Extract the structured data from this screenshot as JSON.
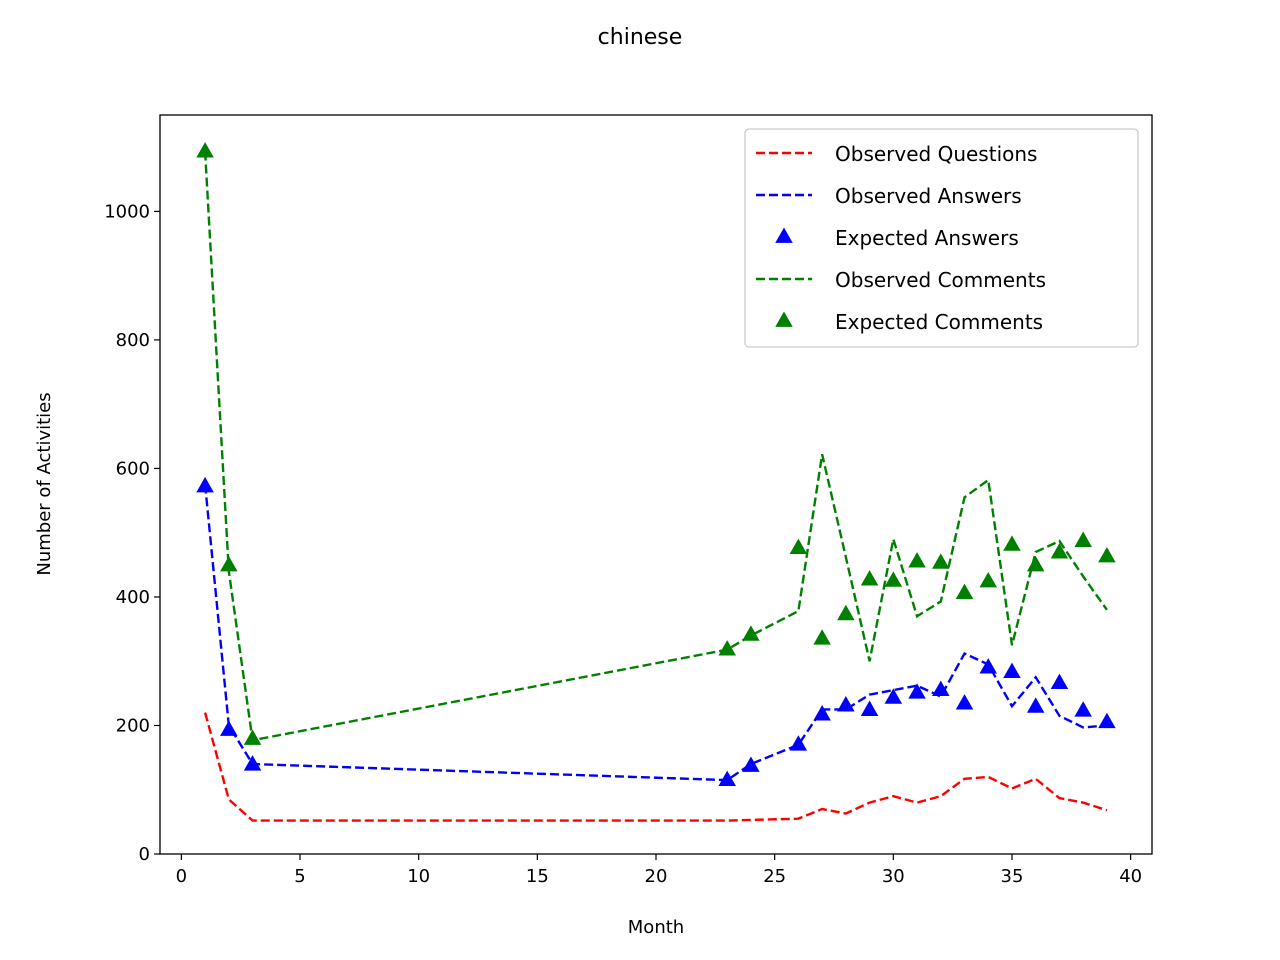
{
  "chart_data": {
    "type": "line",
    "title": "chinese",
    "xlabel": "Month",
    "ylabel": "Number of Activities",
    "xlim": [
      -0.9,
      40.9
    ],
    "ylim": [
      0,
      1150
    ],
    "xticks": [
      0,
      5,
      10,
      15,
      20,
      25,
      30,
      35,
      40
    ],
    "yticks": [
      0,
      200,
      400,
      600,
      800,
      1000
    ],
    "grid": false,
    "legend_position": "top-right",
    "x": [
      1,
      2,
      3,
      23,
      24,
      26,
      27,
      28,
      29,
      30,
      31,
      32,
      33,
      34,
      35,
      36,
      37,
      38,
      39
    ],
    "series": [
      {
        "name": "Observed Questions",
        "style": "dashed-line",
        "color": "#ff0000",
        "values": [
          220,
          85,
          52,
          52,
          53,
          55,
          70,
          63,
          80,
          90,
          80,
          90,
          117,
          120,
          102,
          117,
          87,
          80,
          68
        ]
      },
      {
        "name": "Observed Answers",
        "style": "dashed-line",
        "color": "#0000ff",
        "values": [
          575,
          200,
          140,
          115,
          140,
          170,
          225,
          225,
          248,
          255,
          262,
          245,
          312,
          295,
          230,
          275,
          215,
          197,
          200
        ]
      },
      {
        "name": "Expected Answers",
        "style": "triangle-marker",
        "color": "#0000ff",
        "values": [
          572,
          193,
          139,
          115,
          137,
          170,
          217,
          231,
          224,
          243,
          251,
          255,
          234,
          290,
          283,
          229,
          266,
          223,
          205
        ]
      },
      {
        "name": "Observed Comments",
        "style": "dashed-line",
        "color": "#008000",
        "values": [
          1093,
          440,
          177,
          318,
          340,
          378,
          622,
          462,
          300,
          490,
          370,
          393,
          555,
          582,
          325,
          470,
          487,
          432,
          380
        ]
      },
      {
        "name": "Expected Comments",
        "style": "triangle-marker",
        "color": "#008000",
        "values": [
          1093,
          449,
          179,
          318,
          341,
          476,
          335,
          373,
          427,
          425,
          455,
          453,
          406,
          424,
          481,
          449,
          469,
          487,
          463
        ]
      }
    ]
  }
}
